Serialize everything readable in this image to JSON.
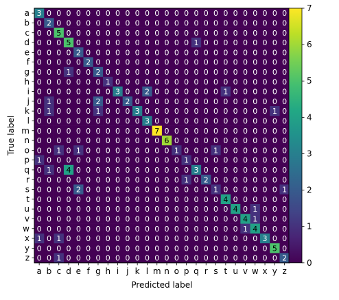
{
  "chart_data": {
    "type": "heatmap",
    "title": "",
    "xlabel": "Predicted label",
    "ylabel": "True label",
    "x_categories": [
      "a",
      "b",
      "c",
      "d",
      "e",
      "f",
      "g",
      "h",
      "i",
      "j",
      "k",
      "l",
      "m",
      "n",
      "o",
      "p",
      "q",
      "r",
      "s",
      "t",
      "u",
      "v",
      "w",
      "x",
      "y",
      "z"
    ],
    "y_categories": [
      "a",
      "b",
      "c",
      "d",
      "e",
      "f",
      "g",
      "h",
      "i",
      "j",
      "k",
      "l",
      "m",
      "n",
      "o",
      "p",
      "q",
      "r",
      "s",
      "t",
      "u",
      "v",
      "w",
      "x",
      "y",
      "z"
    ],
    "matrix": [
      [
        3,
        0,
        0,
        0,
        0,
        0,
        0,
        0,
        0,
        0,
        0,
        0,
        0,
        0,
        0,
        0,
        0,
        0,
        0,
        0,
        0,
        0,
        0,
        0,
        0,
        0
      ],
      [
        0,
        2,
        0,
        0,
        0,
        0,
        0,
        0,
        0,
        0,
        0,
        0,
        0,
        0,
        0,
        0,
        0,
        0,
        0,
        0,
        0,
        0,
        0,
        0,
        0,
        0
      ],
      [
        0,
        0,
        5,
        0,
        0,
        0,
        0,
        0,
        0,
        0,
        0,
        0,
        0,
        0,
        0,
        0,
        0,
        0,
        0,
        0,
        0,
        0,
        0,
        0,
        0,
        0
      ],
      [
        0,
        0,
        0,
        5,
        0,
        0,
        0,
        0,
        0,
        0,
        0,
        0,
        0,
        0,
        0,
        0,
        1,
        0,
        0,
        0,
        0,
        0,
        0,
        0,
        0,
        0
      ],
      [
        0,
        0,
        0,
        0,
        2,
        0,
        0,
        0,
        0,
        0,
        0,
        0,
        0,
        0,
        0,
        0,
        0,
        0,
        0,
        0,
        0,
        0,
        0,
        0,
        0,
        0
      ],
      [
        0,
        0,
        0,
        0,
        0,
        2,
        0,
        0,
        0,
        0,
        0,
        0,
        0,
        0,
        0,
        0,
        0,
        0,
        0,
        0,
        0,
        0,
        0,
        0,
        0,
        0
      ],
      [
        0,
        0,
        0,
        1,
        0,
        0,
        2,
        0,
        0,
        0,
        0,
        0,
        0,
        0,
        0,
        0,
        0,
        0,
        0,
        0,
        0,
        0,
        0,
        0,
        0,
        0
      ],
      [
        0,
        0,
        0,
        0,
        0,
        0,
        0,
        1,
        0,
        0,
        0,
        0,
        0,
        0,
        0,
        0,
        0,
        0,
        0,
        0,
        0,
        0,
        0,
        0,
        0,
        0
      ],
      [
        0,
        0,
        0,
        0,
        0,
        0,
        0,
        0,
        3,
        0,
        0,
        2,
        0,
        0,
        0,
        0,
        0,
        0,
        0,
        1,
        0,
        0,
        0,
        0,
        0,
        0
      ],
      [
        0,
        1,
        0,
        0,
        0,
        0,
        2,
        0,
        0,
        2,
        0,
        0,
        0,
        0,
        0,
        0,
        0,
        0,
        0,
        0,
        0,
        0,
        0,
        0,
        0,
        0
      ],
      [
        0,
        1,
        0,
        0,
        0,
        0,
        1,
        0,
        0,
        0,
        3,
        0,
        0,
        0,
        0,
        0,
        0,
        0,
        0,
        0,
        0,
        0,
        0,
        0,
        1,
        0
      ],
      [
        0,
        0,
        0,
        0,
        0,
        0,
        0,
        0,
        0,
        0,
        0,
        3,
        0,
        0,
        0,
        0,
        0,
        0,
        0,
        0,
        0,
        0,
        0,
        0,
        0,
        0
      ],
      [
        0,
        0,
        0,
        0,
        0,
        0,
        0,
        0,
        0,
        0,
        0,
        0,
        7,
        0,
        0,
        0,
        0,
        0,
        0,
        0,
        0,
        0,
        0,
        0,
        0,
        0
      ],
      [
        0,
        0,
        0,
        0,
        0,
        0,
        0,
        0,
        0,
        0,
        0,
        0,
        0,
        6,
        0,
        0,
        0,
        0,
        0,
        0,
        0,
        0,
        0,
        0,
        0,
        0
      ],
      [
        0,
        0,
        1,
        0,
        1,
        0,
        0,
        0,
        0,
        0,
        0,
        0,
        0,
        0,
        1,
        0,
        0,
        0,
        1,
        0,
        0,
        0,
        0,
        0,
        0,
        0
      ],
      [
        1,
        0,
        0,
        0,
        0,
        0,
        0,
        0,
        0,
        0,
        0,
        0,
        0,
        0,
        0,
        1,
        0,
        0,
        0,
        0,
        0,
        0,
        0,
        0,
        0,
        0
      ],
      [
        0,
        1,
        0,
        4,
        0,
        0,
        0,
        0,
        0,
        0,
        0,
        0,
        0,
        0,
        0,
        0,
        3,
        0,
        0,
        0,
        0,
        0,
        0,
        0,
        0,
        0
      ],
      [
        0,
        0,
        0,
        0,
        0,
        0,
        0,
        0,
        0,
        0,
        0,
        0,
        0,
        0,
        0,
        1,
        0,
        2,
        0,
        0,
        0,
        0,
        0,
        0,
        0,
        0
      ],
      [
        0,
        0,
        0,
        0,
        2,
        0,
        0,
        0,
        0,
        0,
        0,
        0,
        0,
        0,
        0,
        0,
        0,
        0,
        1,
        0,
        0,
        0,
        0,
        0,
        0,
        1
      ],
      [
        0,
        0,
        0,
        0,
        0,
        0,
        0,
        0,
        0,
        0,
        0,
        0,
        0,
        0,
        0,
        0,
        0,
        0,
        0,
        4,
        0,
        0,
        0,
        0,
        0,
        0
      ],
      [
        0,
        0,
        0,
        0,
        0,
        0,
        0,
        0,
        0,
        0,
        0,
        0,
        0,
        0,
        0,
        0,
        0,
        0,
        0,
        0,
        4,
        0,
        1,
        0,
        0,
        0
      ],
      [
        0,
        0,
        0,
        0,
        0,
        0,
        0,
        0,
        0,
        0,
        0,
        0,
        0,
        0,
        0,
        0,
        0,
        0,
        0,
        0,
        0,
        4,
        1,
        0,
        0,
        0
      ],
      [
        0,
        0,
        0,
        0,
        0,
        0,
        0,
        0,
        0,
        0,
        0,
        0,
        0,
        0,
        0,
        0,
        0,
        0,
        0,
        0,
        0,
        1,
        4,
        0,
        0,
        0
      ],
      [
        1,
        0,
        1,
        0,
        0,
        0,
        0,
        0,
        0,
        0,
        0,
        0,
        0,
        0,
        0,
        0,
        0,
        0,
        0,
        0,
        0,
        0,
        0,
        3,
        0,
        0
      ],
      [
        0,
        0,
        0,
        0,
        0,
        0,
        0,
        0,
        0,
        0,
        0,
        0,
        0,
        0,
        0,
        0,
        0,
        0,
        0,
        0,
        0,
        0,
        0,
        0,
        5,
        0
      ],
      [
        0,
        0,
        1,
        0,
        0,
        0,
        0,
        0,
        0,
        0,
        0,
        0,
        0,
        0,
        0,
        0,
        0,
        0,
        0,
        0,
        0,
        0,
        0,
        0,
        0,
        2
      ]
    ],
    "colorbar": {
      "min": 0,
      "max": 7,
      "ticks": [
        0,
        1,
        2,
        3,
        4,
        5,
        6,
        7
      ],
      "colormap": "viridis"
    },
    "grid": false,
    "legend": "colorbar-right",
    "text_color_dark_cells": "#ffffff",
    "text_color_light_cells": "#000000"
  }
}
